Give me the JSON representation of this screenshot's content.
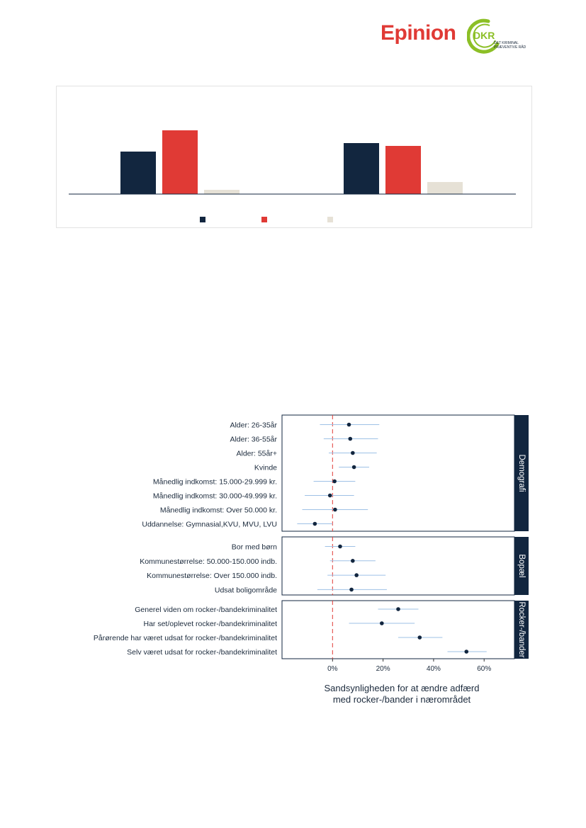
{
  "header": {
    "logo_text": "Epinion",
    "partner_logo": "DKR",
    "partner_subtitle_line1": "DET KRIMINAL",
    "partner_subtitle_line2": "PRÆVENTIVE RÅD"
  },
  "colors": {
    "navy": "#12263f",
    "red": "#e03a35",
    "beige": "#e6e1d6",
    "brand_red": "#e03a35",
    "brand_green": "#8cbf26",
    "ci_line": "#9ec1e6",
    "ref_line": "#e03a35",
    "panel_strip": "#12263f"
  },
  "chart_data": [
    {
      "type": "bar",
      "groups": 2,
      "series": [
        {
          "color": "#12263f",
          "values": [
            30,
            36
          ]
        },
        {
          "color": "#e03a35",
          "values": [
            45,
            34
          ]
        },
        {
          "color": "#e6e1d6",
          "values": [
            3,
            8.5
          ]
        }
      ],
      "legend": "bottom",
      "grid": false
    },
    {
      "type": "scatter",
      "subtype": "coefficient-plot",
      "xlabel_line1": "Sandsynligheden for at ændre adfærd",
      "xlabel_line2": "med rocker-/bander i nærområdet",
      "xlim": [
        -20,
        72
      ],
      "xticks": [
        0,
        20,
        40,
        60
      ],
      "xtick_labels": [
        "0%",
        "20%",
        "40%",
        "60%"
      ],
      "reference_line": 0,
      "panels": [
        {
          "label": "Demografi",
          "rows": [
            {
              "label": "Alder: 26-35år",
              "estimate": 6.5,
              "low": -5.0,
              "high": 18.5
            },
            {
              "label": "Alder: 36-55år",
              "estimate": 7.0,
              "low": -3.5,
              "high": 18.0
            },
            {
              "label": "Alder: 55år+",
              "estimate": 8.0,
              "low": -1.5,
              "high": 17.5
            },
            {
              "label": "Kvinde",
              "estimate": 8.5,
              "low": 2.5,
              "high": 14.5
            },
            {
              "label": "Månedlig indkomst: 15.000-29.999 kr.",
              "estimate": 0.8,
              "low": -7.5,
              "high": 9.0
            },
            {
              "label": "Månedlig indkomst: 30.000-49.999 kr.",
              "estimate": -1.0,
              "low": -11.0,
              "high": 8.5
            },
            {
              "label": "Månedlig indkomst: Over 50.000 kr.",
              "estimate": 1.0,
              "low": -12.0,
              "high": 14.0
            },
            {
              "label": "Uddannelse: Gymnasial,KVU, MVU, LVU",
              "estimate": -7.0,
              "low": -14.0,
              "high": 0.0
            }
          ]
        },
        {
          "label": "Bopæl",
          "rows": [
            {
              "label": "Bor med børn",
              "estimate": 3.0,
              "low": -3.0,
              "high": 9.0
            },
            {
              "label": "Kommunestørrelse: 50.000-150.000 indb.",
              "estimate": 8.0,
              "low": -1.0,
              "high": 17.0
            },
            {
              "label": "Kommunestørrelse: Over 150.000 indb.",
              "estimate": 9.5,
              "low": -2.0,
              "high": 21.0
            },
            {
              "label": "Udsat boligområde",
              "estimate": 7.5,
              "low": -6.0,
              "high": 21.5
            }
          ]
        },
        {
          "label": "Rocker-/bander",
          "rows": [
            {
              "label": "Generel viden om rocker-/bandekriminalitet",
              "estimate": 26.0,
              "low": 18.0,
              "high": 34.0
            },
            {
              "label": "Har set/oplevet rocker-/bandekriminalitet",
              "estimate": 19.5,
              "low": 6.5,
              "high": 32.5
            },
            {
              "label": "Pårørende har været udsat for rocker-/bandekriminalitet",
              "estimate": 34.5,
              "low": 26.0,
              "high": 43.5
            },
            {
              "label": "Selv været udsat for rocker-/bandekriminalitet",
              "estimate": 53.0,
              "low": 45.5,
              "high": 61.0
            }
          ]
        }
      ]
    }
  ]
}
